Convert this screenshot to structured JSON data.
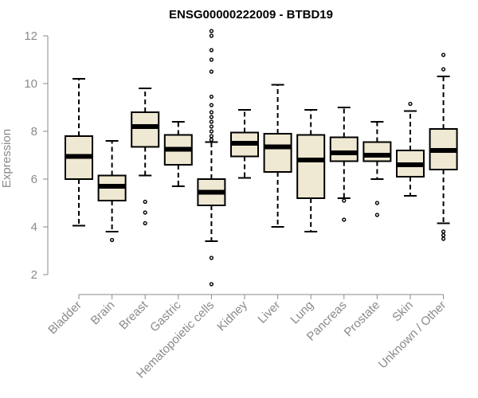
{
  "chart_data": {
    "type": "boxplot",
    "title": "ENSG00000222009 - BTBD19",
    "ylabel": "Expression",
    "xlabel": "",
    "ylim": [
      1.4,
      12.5
    ],
    "yticks": [
      2,
      4,
      6,
      8,
      10,
      12
    ],
    "grid": false,
    "colors": {
      "box_fill": "#efe8d2",
      "box_stroke": "#000000",
      "axis": "#8a8a8a",
      "tick_text": "#8a8a8a"
    },
    "categories": [
      "Bladder",
      "Brain",
      "Breast",
      "Gastric",
      "Hematopoietic cells",
      "Kidney",
      "Liver",
      "Lung",
      "Pancreas",
      "Prostate",
      "Skin",
      "Unknown / Other"
    ],
    "boxes": [
      {
        "name": "Bladder",
        "whisker_low": 4.05,
        "q1": 6.0,
        "median": 6.95,
        "q3": 7.8,
        "whisker_high": 10.2,
        "outliers": []
      },
      {
        "name": "Brain",
        "whisker_low": 3.8,
        "q1": 5.1,
        "median": 5.7,
        "q3": 6.15,
        "whisker_high": 7.6,
        "outliers": [
          3.45
        ]
      },
      {
        "name": "Breast",
        "whisker_low": 6.15,
        "q1": 7.35,
        "median": 8.2,
        "q3": 8.8,
        "whisker_high": 9.8,
        "outliers": [
          5.05,
          4.6,
          4.15
        ]
      },
      {
        "name": "Gastric",
        "whisker_low": 5.7,
        "q1": 6.6,
        "median": 7.25,
        "q3": 7.85,
        "whisker_high": 8.4,
        "outliers": []
      },
      {
        "name": "Hematopoietic cells",
        "whisker_low": 3.4,
        "q1": 4.9,
        "median": 5.45,
        "q3": 6.0,
        "whisker_high": 7.55,
        "outliers": [
          12.2,
          12.0,
          11.4,
          11.0,
          10.5,
          9.45,
          9.1,
          8.8,
          8.6,
          8.4,
          8.2,
          8.0,
          7.8,
          7.65,
          2.7,
          1.6
        ]
      },
      {
        "name": "Kidney",
        "whisker_low": 6.05,
        "q1": 6.95,
        "median": 7.5,
        "q3": 7.95,
        "whisker_high": 8.9,
        "outliers": []
      },
      {
        "name": "Liver",
        "whisker_low": 4.0,
        "q1": 6.3,
        "median": 7.35,
        "q3": 7.9,
        "whisker_high": 9.95,
        "outliers": []
      },
      {
        "name": "Lung",
        "whisker_low": 3.8,
        "q1": 5.2,
        "median": 6.8,
        "q3": 7.85,
        "whisker_high": 8.9,
        "outliers": []
      },
      {
        "name": "Pancreas",
        "whisker_low": 5.2,
        "q1": 6.75,
        "median": 7.1,
        "q3": 7.75,
        "whisker_high": 9.0,
        "outliers": [
          5.1,
          4.3
        ]
      },
      {
        "name": "Prostate",
        "whisker_low": 6.0,
        "q1": 6.75,
        "median": 7.0,
        "q3": 7.55,
        "whisker_high": 8.4,
        "outliers": [
          5.0,
          4.5
        ]
      },
      {
        "name": "Skin",
        "whisker_low": 5.3,
        "q1": 6.1,
        "median": 6.6,
        "q3": 7.2,
        "whisker_high": 8.85,
        "outliers": [
          9.15
        ]
      },
      {
        "name": "Unknown / Other",
        "whisker_low": 4.15,
        "q1": 6.4,
        "median": 7.2,
        "q3": 8.1,
        "whisker_high": 10.3,
        "outliers": [
          11.2,
          10.6,
          3.8,
          3.65,
          3.5
        ]
      }
    ]
  }
}
